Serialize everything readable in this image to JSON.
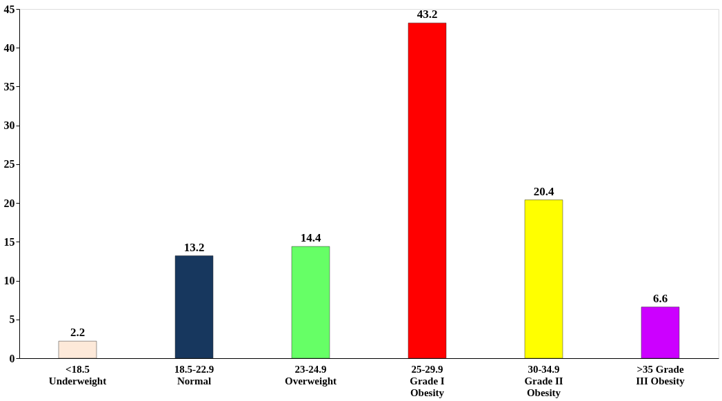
{
  "chart_data": {
    "type": "bar",
    "categories": [
      "<18.5 Underweight",
      "18.5-22.9 Normal",
      "23-24.9 Overweight",
      "25-29.9 Grade I Obesity",
      "30-34.9 Grade II Obesity",
      ">35  Grade III Obesity"
    ],
    "values": [
      2.2,
      13.2,
      14.4,
      43.2,
      20.4,
      6.6
    ],
    "colors": [
      "#fde9d9",
      "#17375e",
      "#66ff66",
      "#ff0000",
      "#ffff00",
      "#cc00ff"
    ],
    "ylim": [
      0,
      45
    ],
    "yticks": [
      0,
      5,
      10,
      15,
      20,
      25,
      30,
      35,
      40,
      45
    ],
    "data_labels": true,
    "grid": false
  }
}
